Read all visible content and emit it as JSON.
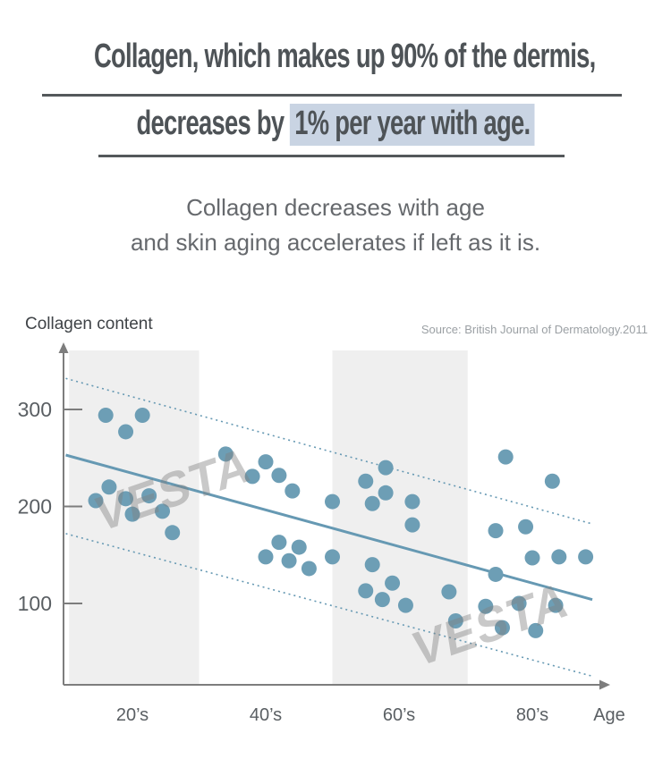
{
  "header": {
    "title_line1": "Collagen, which makes up 90% of the dermis,",
    "title_line2_prefix": "decreases by ",
    "title_line2_highlight": "1% per year with age.",
    "subtitle_line1": "Collagen decreases with age",
    "subtitle_line2": "and skin aging accelerates if left as it is.",
    "highlight_color": "#c9d4e3"
  },
  "chart": {
    "y_axis_label": "Collagen content",
    "source": "Source: British Journal of Dermatology.2011",
    "watermark": "VESTA"
  },
  "chart_data": {
    "type": "scatter",
    "title": "Collagen content by age",
    "xlabel": "Age",
    "ylabel": "Collagen content",
    "x_tick_labels": [
      "20’s",
      "40’s",
      "60’s",
      "80’s"
    ],
    "x_tick_ages": [
      25,
      45,
      65,
      85
    ],
    "y_ticks": [
      100,
      200,
      300
    ],
    "x_range_age": [
      15,
      95
    ],
    "y_range": [
      0,
      360
    ],
    "grid": false,
    "legend": false,
    "points": [
      [
        21,
        294
      ],
      [
        26.5,
        294
      ],
      [
        24,
        277
      ],
      [
        19.5,
        206
      ],
      [
        21.5,
        220
      ],
      [
        24,
        208
      ],
      [
        27.5,
        211
      ],
      [
        25,
        192
      ],
      [
        29.5,
        195
      ],
      [
        31,
        173
      ],
      [
        39,
        254
      ],
      [
        45,
        246
      ],
      [
        43,
        231
      ],
      [
        47,
        232
      ],
      [
        49,
        216
      ],
      [
        55,
        205
      ],
      [
        47,
        163
      ],
      [
        45,
        148
      ],
      [
        50,
        158
      ],
      [
        48.5,
        144
      ],
      [
        51.5,
        136
      ],
      [
        55,
        148
      ],
      [
        63,
        240
      ],
      [
        60,
        226
      ],
      [
        63,
        214
      ],
      [
        61,
        203
      ],
      [
        67,
        205
      ],
      [
        67,
        181
      ],
      [
        61,
        140
      ],
      [
        64,
        121
      ],
      [
        60,
        113
      ],
      [
        62.5,
        104
      ],
      [
        66,
        98
      ],
      [
        81,
        251
      ],
      [
        88,
        226
      ],
      [
        79.5,
        175
      ],
      [
        84,
        179
      ],
      [
        85,
        147
      ],
      [
        89,
        148
      ],
      [
        93,
        148
      ],
      [
        79.5,
        130
      ],
      [
        72.5,
        112
      ],
      [
        78,
        97
      ],
      [
        83,
        100
      ],
      [
        88.5,
        98
      ],
      [
        73.5,
        82
      ],
      [
        80.5,
        75
      ],
      [
        85.5,
        72
      ]
    ],
    "trend_line": {
      "x": [
        15,
        94
      ],
      "y": [
        253,
        104
      ]
    },
    "upper_dotted": {
      "x": [
        15,
        94
      ],
      "y": [
        332,
        182
      ]
    },
    "lower_dotted": {
      "x": [
        15,
        94
      ],
      "y": [
        172,
        25
      ]
    },
    "shaded_age_bands": [
      [
        15.5,
        35
      ],
      [
        55,
        75.3
      ]
    ],
    "colors": {
      "point": "#6d9eb5",
      "line": "#6699b3",
      "axis": "#7d7d7d",
      "band": "#efefef",
      "tick_text": "#5a5f63"
    }
  }
}
